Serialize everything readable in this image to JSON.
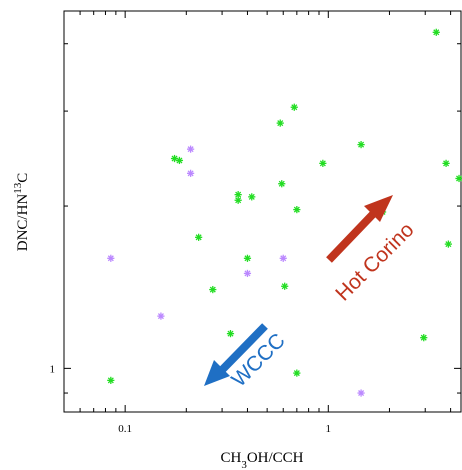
{
  "chart_data": {
    "type": "scatter",
    "x_scale": "log",
    "y_scale": "log",
    "xlim": [
      0.05,
      4.5
    ],
    "ylim": [
      0.83,
      4.6
    ],
    "xlabel": "CH₃OH/CCH",
    "ylabel": "DNC/HN¹³C",
    "x_tick_labels": [
      {
        "value": 0.1,
        "label": "0.1"
      },
      {
        "value": 1,
        "label": "1"
      }
    ],
    "y_tick_labels": [
      {
        "value": 1,
        "label": "1"
      }
    ],
    "marker": "asterisk",
    "series": [
      {
        "color": "#22dd22",
        "points": [
          [
            0.085,
            0.95
          ],
          [
            0.175,
            2.45
          ],
          [
            0.185,
            2.43
          ],
          [
            0.23,
            1.75
          ],
          [
            0.27,
            1.4
          ],
          [
            0.33,
            1.16
          ],
          [
            0.36,
            2.1
          ],
          [
            0.36,
            2.05
          ],
          [
            0.4,
            1.6
          ],
          [
            0.42,
            2.08
          ],
          [
            0.58,
            2.85
          ],
          [
            0.59,
            2.2
          ],
          [
            0.61,
            1.42
          ],
          [
            0.68,
            3.05
          ],
          [
            0.7,
            1.97
          ],
          [
            0.7,
            0.98
          ],
          [
            0.94,
            2.4
          ],
          [
            1.45,
            2.6
          ],
          [
            1.85,
            1.95
          ],
          [
            2.95,
            1.14
          ],
          [
            3.4,
            4.2
          ],
          [
            3.8,
            2.4
          ],
          [
            3.9,
            1.7
          ],
          [
            4.4,
            2.25
          ]
        ]
      },
      {
        "color": "#bb88ff",
        "points": [
          [
            0.085,
            1.6
          ],
          [
            0.15,
            1.25
          ],
          [
            0.21,
            2.55
          ],
          [
            0.21,
            2.3
          ],
          [
            0.4,
            1.5
          ],
          [
            0.6,
            1.6
          ],
          [
            1.45,
            0.9
          ]
        ]
      }
    ],
    "annotations": [
      {
        "text": "Hot Corino",
        "color": "#c0341d"
      },
      {
        "text": "WCCC",
        "color": "#1f6fc4"
      }
    ]
  }
}
